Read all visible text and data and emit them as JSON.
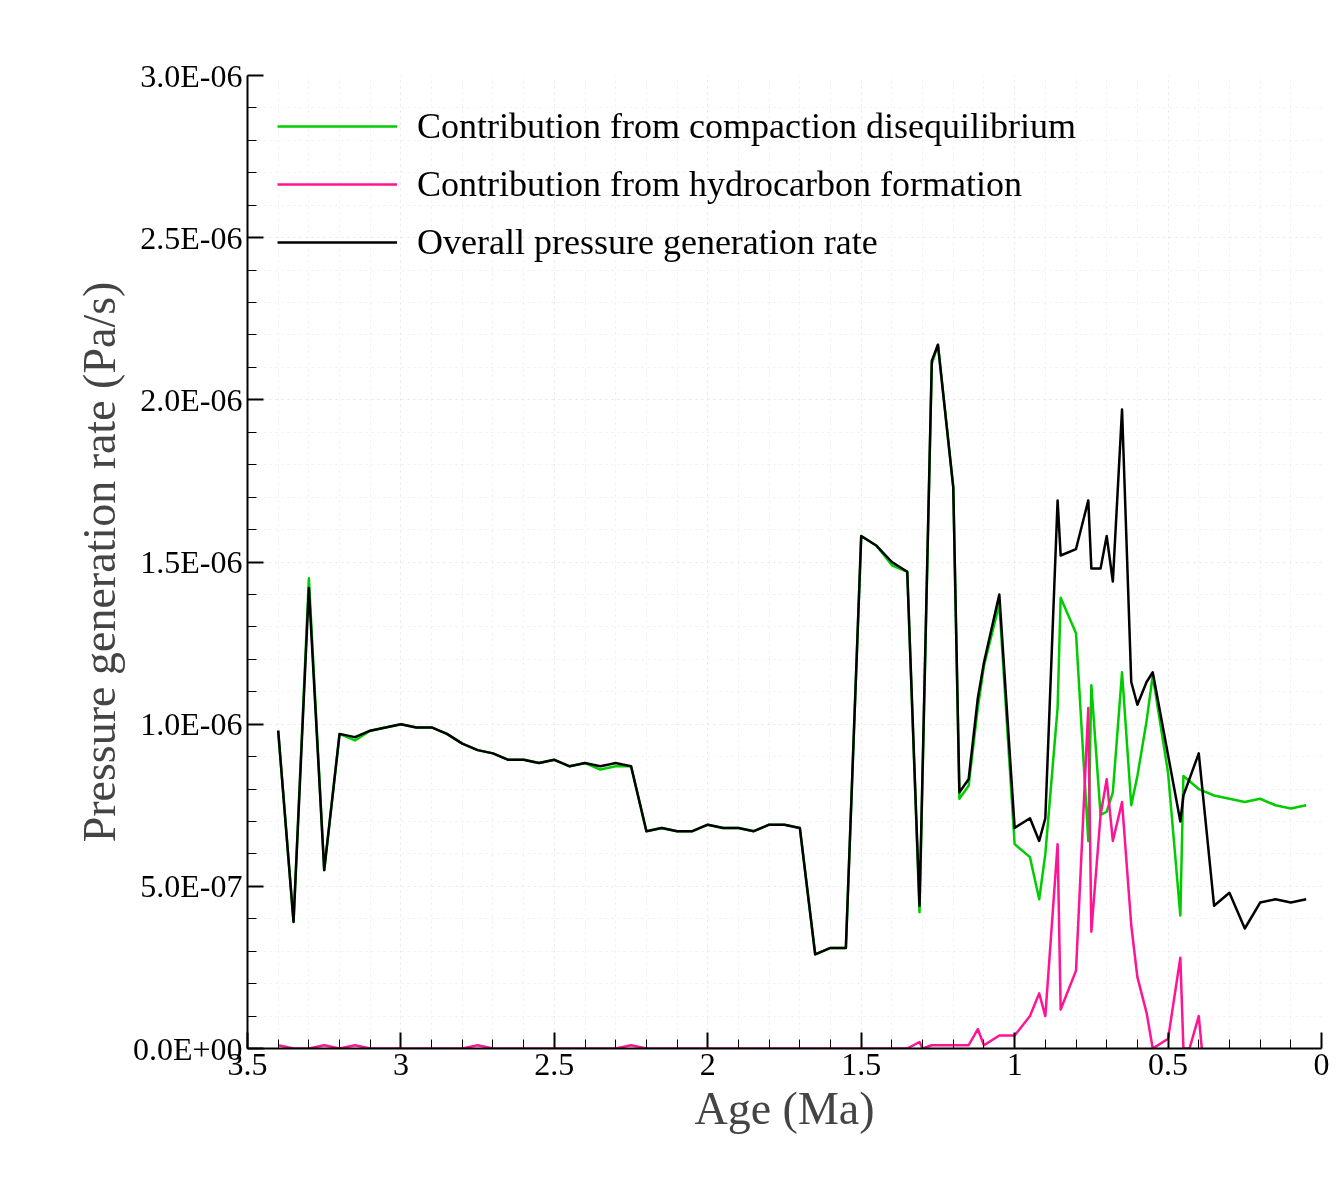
{
  "chart_data": {
    "type": "line",
    "xlabel": "Age (Ma)",
    "ylabel": "Pressure generation rate (Pa/s)",
    "xlim": [
      3.5,
      0
    ],
    "xticks": [
      3.5,
      3,
      2.5,
      2,
      1.5,
      1,
      0.5,
      0
    ],
    "ylim": [
      0,
      3e-06
    ],
    "yticks": [
      {
        "value": 0,
        "label": "0.0E+00"
      },
      {
        "value": 5e-07,
        "label": "5.0E-07"
      },
      {
        "value": 1e-06,
        "label": "1.0E-06"
      },
      {
        "value": 1.5e-06,
        "label": "1.5E-06"
      },
      {
        "value": 2e-06,
        "label": "2.0E-06"
      },
      {
        "value": 2.5e-06,
        "label": "2.5E-06"
      },
      {
        "value": 3e-06,
        "label": "3.0E-06"
      }
    ],
    "grid": true,
    "legend": "top left",
    "marker": "none",
    "line_style": "solid",
    "series": [
      {
        "name": "Contribution from compaction disequilibrium",
        "color": "#00cc00",
        "x": [
          3.4,
          3.35,
          3.3,
          3.25,
          3.2,
          3.15,
          3.1,
          3.05,
          3.0,
          2.95,
          2.9,
          2.85,
          2.8,
          2.75,
          2.7,
          2.65,
          2.6,
          2.55,
          2.5,
          2.45,
          2.4,
          2.35,
          2.3,
          2.25,
          2.2,
          2.15,
          2.1,
          2.05,
          2.0,
          1.95,
          1.9,
          1.85,
          1.8,
          1.75,
          1.7,
          1.65,
          1.6,
          1.55,
          1.5,
          1.45,
          1.4,
          1.35,
          1.31,
          1.27,
          1.25,
          1.2,
          1.18,
          1.15,
          1.12,
          1.1,
          1.05,
          1.0,
          0.95,
          0.92,
          0.9,
          0.86,
          0.85,
          0.8,
          0.76,
          0.75,
          0.72,
          0.7,
          0.68,
          0.65,
          0.62,
          0.6,
          0.57,
          0.55,
          0.5,
          0.46,
          0.45,
          0.4,
          0.35,
          0.3,
          0.25,
          0.2,
          0.15,
          0.1,
          0.05
        ],
        "values": [
          9.8e-07,
          3.9e-07,
          1.45e-06,
          5.5e-07,
          9.7e-07,
          9.5e-07,
          9.8e-07,
          9.9e-07,
          1e-06,
          9.9e-07,
          9.9e-07,
          9.7e-07,
          9.4e-07,
          9.2e-07,
          9.1e-07,
          8.9e-07,
          8.9e-07,
          8.8e-07,
          8.9e-07,
          8.7e-07,
          8.8e-07,
          8.6e-07,
          8.7e-07,
          8.7e-07,
          6.7e-07,
          6.8e-07,
          6.7e-07,
          6.7e-07,
          6.9e-07,
          6.8e-07,
          6.8e-07,
          6.7e-07,
          6.9e-07,
          6.9e-07,
          6.8e-07,
          2.9e-07,
          3.1e-07,
          3.1e-07,
          1.58e-06,
          1.55e-06,
          1.49e-06,
          1.47e-06,
          4.2e-07,
          2.11e-06,
          2.17e-06,
          1.73e-06,
          7.7e-07,
          8.1e-07,
          1.05e-06,
          1.18e-06,
          1.37e-06,
          6.3e-07,
          5.9e-07,
          4.6e-07,
          6e-07,
          1.05e-06,
          1.39e-06,
          1.28e-06,
          6.4e-07,
          1.12e-06,
          7.2e-07,
          7.3e-07,
          7.9e-07,
          1.16e-06,
          7.5e-07,
          8.4e-07,
          1.01e-06,
          1.15e-06,
          8.5e-07,
          4.1e-07,
          8.4e-07,
          8e-07,
          7.8e-07,
          7.7e-07,
          7.6e-07,
          7.7e-07,
          7.5e-07,
          7.4e-07,
          7.5e-07
        ]
      },
      {
        "name": "Contribution from hydrocarbon formation",
        "color": "#ff1493",
        "x": [
          3.4,
          3.35,
          3.3,
          3.25,
          3.2,
          3.15,
          3.1,
          2.8,
          2.75,
          2.7,
          2.3,
          2.25,
          2.2,
          1.6,
          1.5,
          1.4,
          1.35,
          1.31,
          1.3,
          1.27,
          1.2,
          1.18,
          1.15,
          1.12,
          1.1,
          1.05,
          1.0,
          0.95,
          0.92,
          0.9,
          0.86,
          0.85,
          0.8,
          0.76,
          0.75,
          0.72,
          0.7,
          0.68,
          0.65,
          0.62,
          0.6,
          0.57,
          0.55,
          0.5,
          0.46,
          0.45,
          0.43,
          0.4,
          0.39
        ],
        "values": [
          1e-08,
          0,
          0,
          1e-08,
          0,
          1e-08,
          0,
          0,
          1e-08,
          0,
          0,
          1e-08,
          0,
          0,
          0,
          0,
          0,
          2e-08,
          0,
          1e-08,
          1e-08,
          1e-08,
          1e-08,
          6e-08,
          1e-08,
          4e-08,
          4e-08,
          1e-07,
          1.7e-07,
          1e-07,
          6.3e-07,
          1.2e-07,
          2.4e-07,
          1.05e-06,
          3.6e-07,
          7.2e-07,
          8.3e-07,
          6.4e-07,
          7.6e-07,
          3.8e-07,
          2.2e-07,
          1.1e-07,
          0,
          3e-08,
          2.8e-07,
          0,
          0,
          1e-07,
          0
        ]
      },
      {
        "name": "Overall pressure generation rate",
        "color": "#000000",
        "x": [
          3.4,
          3.35,
          3.3,
          3.25,
          3.2,
          3.15,
          3.1,
          3.05,
          3.0,
          2.95,
          2.9,
          2.85,
          2.8,
          2.75,
          2.7,
          2.65,
          2.6,
          2.55,
          2.5,
          2.45,
          2.4,
          2.35,
          2.3,
          2.25,
          2.2,
          2.15,
          2.1,
          2.05,
          2.0,
          1.95,
          1.9,
          1.85,
          1.8,
          1.75,
          1.7,
          1.65,
          1.6,
          1.55,
          1.5,
          1.45,
          1.4,
          1.35,
          1.31,
          1.27,
          1.25,
          1.2,
          1.18,
          1.15,
          1.12,
          1.1,
          1.05,
          1.0,
          0.95,
          0.92,
          0.9,
          0.86,
          0.85,
          0.8,
          0.76,
          0.75,
          0.72,
          0.7,
          0.68,
          0.65,
          0.62,
          0.6,
          0.57,
          0.55,
          0.46,
          0.45,
          0.4,
          0.35,
          0.3,
          0.25,
          0.2,
          0.15,
          0.1,
          0.05
        ],
        "values": [
          9.8e-07,
          3.9e-07,
          1.42e-06,
          5.5e-07,
          9.7e-07,
          9.6e-07,
          9.8e-07,
          9.9e-07,
          1e-06,
          9.9e-07,
          9.9e-07,
          9.7e-07,
          9.4e-07,
          9.2e-07,
          9.1e-07,
          8.9e-07,
          8.9e-07,
          8.8e-07,
          8.9e-07,
          8.7e-07,
          8.8e-07,
          8.7e-07,
          8.8e-07,
          8.7e-07,
          6.7e-07,
          6.8e-07,
          6.7e-07,
          6.7e-07,
          6.9e-07,
          6.8e-07,
          6.8e-07,
          6.7e-07,
          6.9e-07,
          6.9e-07,
          6.8e-07,
          2.9e-07,
          3.1e-07,
          3.1e-07,
          1.58e-06,
          1.55e-06,
          1.5e-06,
          1.47e-06,
          4.4e-07,
          2.12e-06,
          2.17e-06,
          1.73e-06,
          7.9e-07,
          8.3e-07,
          1.08e-06,
          1.19e-06,
          1.4e-06,
          6.8e-07,
          7.1e-07,
          6.4e-07,
          7.1e-07,
          1.69e-06,
          1.52e-06,
          1.54e-06,
          1.69e-06,
          1.48e-06,
          1.48e-06,
          1.58e-06,
          1.44e-06,
          1.97e-06,
          1.13e-06,
          1.06e-06,
          1.13e-06,
          1.16e-06,
          7e-07,
          7.8e-07,
          9.1e-07,
          4.4e-07,
          4.8e-07,
          3.7e-07,
          4.5e-07,
          4.6e-07,
          4.5e-07,
          4.6e-07
        ]
      }
    ]
  }
}
